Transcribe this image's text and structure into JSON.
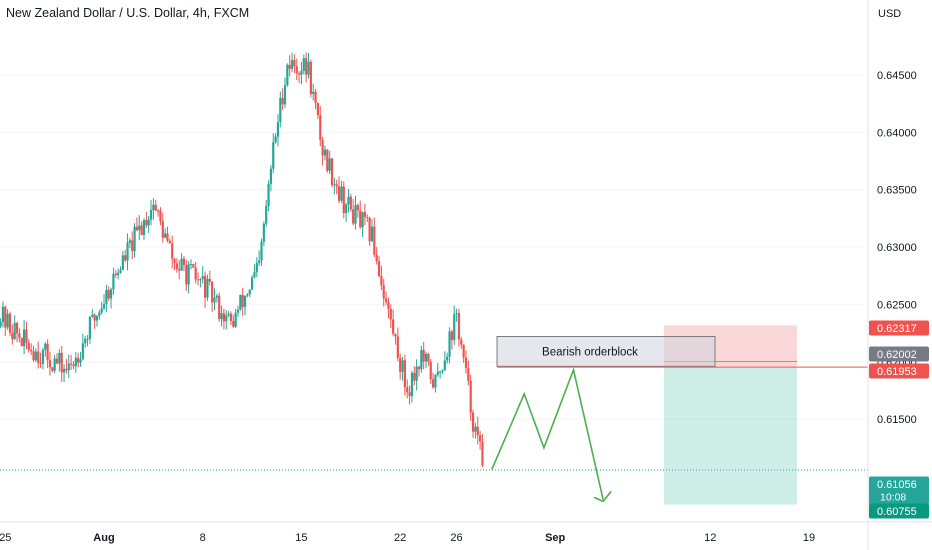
{
  "chart_data": {
    "type": "candlestick",
    "title": "New Zealand Dollar / U.S. Dollar, 4h, FXCM",
    "currency_label": "USD",
    "y_ticks": [
      "0.64500",
      "0.64000",
      "0.63500",
      "0.63000",
      "0.62500",
      "0.62000",
      "0.61500"
    ],
    "x_ticks": [
      {
        "label": "25",
        "day": -1
      },
      {
        "label": "Aug",
        "day": 6
      },
      {
        "label": "8",
        "day": 13
      },
      {
        "label": "15",
        "day": 20
      },
      {
        "label": "22",
        "day": 27
      },
      {
        "label": "26",
        "day": 31
      },
      {
        "label": "Sep",
        "day": 38
      },
      {
        "label": "12",
        "day": 49
      },
      {
        "label": "19",
        "day": 56
      }
    ],
    "price_markers": [
      {
        "value": "0.62317",
        "color": "#ef5350"
      },
      {
        "value": "0.62002",
        "color": "#787b86"
      },
      {
        "value": "0.61953",
        "color": "#ef5350"
      },
      {
        "value": "0.61056",
        "sub": "10:08",
        "color": "#26a69a"
      },
      {
        "value": "0.60755",
        "color": "#089981"
      }
    ],
    "annotation": {
      "text": "Bearish orderblock",
      "top": 0.6222,
      "bottom": 0.6196
    },
    "position_tool": {
      "entry": 0.61953,
      "stop": 0.62317,
      "target": 0.60755
    },
    "current_price": 0.61056,
    "colors": {
      "up": "#26a69a",
      "down": "#ef5350",
      "projection": "#4caf50"
    },
    "projection_path": [
      {
        "day": 33.5,
        "price": 0.6106
      },
      {
        "day": 35.8,
        "price": 0.6172
      },
      {
        "day": 37.2,
        "price": 0.6125
      },
      {
        "day": 39.3,
        "price": 0.6193
      },
      {
        "day": 41.4,
        "price": 0.608
      }
    ],
    "anchors": [
      {
        "day": -1.5,
        "price": 0.6242
      },
      {
        "day": 0.5,
        "price": 0.6215
      },
      {
        "day": 3.5,
        "price": 0.6192
      },
      {
        "day": 7,
        "price": 0.628
      },
      {
        "day": 9.5,
        "price": 0.6338
      },
      {
        "day": 11,
        "price": 0.6285
      },
      {
        "day": 13,
        "price": 0.6268
      },
      {
        "day": 15,
        "price": 0.6232
      },
      {
        "day": 17,
        "price": 0.6282
      },
      {
        "day": 18,
        "price": 0.6385
      },
      {
        "day": 19,
        "price": 0.646
      },
      {
        "day": 20.5,
        "price": 0.6455
      },
      {
        "day": 21.5,
        "price": 0.6385
      },
      {
        "day": 23,
        "price": 0.634
      },
      {
        "day": 25,
        "price": 0.631
      },
      {
        "day": 26,
        "price": 0.6252
      },
      {
        "day": 27.5,
        "price": 0.6175
      },
      {
        "day": 28.5,
        "price": 0.6205
      },
      {
        "day": 29.5,
        "price": 0.618
      },
      {
        "day": 31,
        "price": 0.624
      },
      {
        "day": 31.5,
        "price": 0.62
      },
      {
        "day": 32.3,
        "price": 0.614
      },
      {
        "day": 33,
        "price": 0.6106
      }
    ]
  }
}
